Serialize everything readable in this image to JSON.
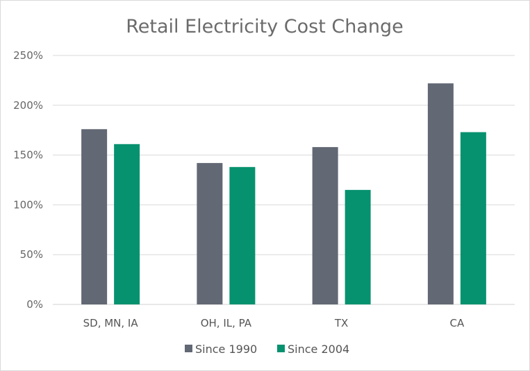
{
  "chart_data": {
    "type": "bar",
    "title": "Retail Electricity Cost Change",
    "categories": [
      "SD, MN, IA",
      "OH, IL, PA",
      "TX",
      "CA"
    ],
    "series": [
      {
        "name": "Since 1990",
        "color": "#626874",
        "values": [
          176,
          142,
          158,
          222
        ]
      },
      {
        "name": "Since 2004",
        "color": "#07926F",
        "values": [
          161,
          138,
          115,
          173
        ]
      }
    ],
    "ylim": [
      0,
      250
    ],
    "yticks": [
      "0%",
      "50%",
      "100%",
      "150%",
      "200%",
      "250%"
    ],
    "grid": true,
    "legend_position": "bottom"
  }
}
